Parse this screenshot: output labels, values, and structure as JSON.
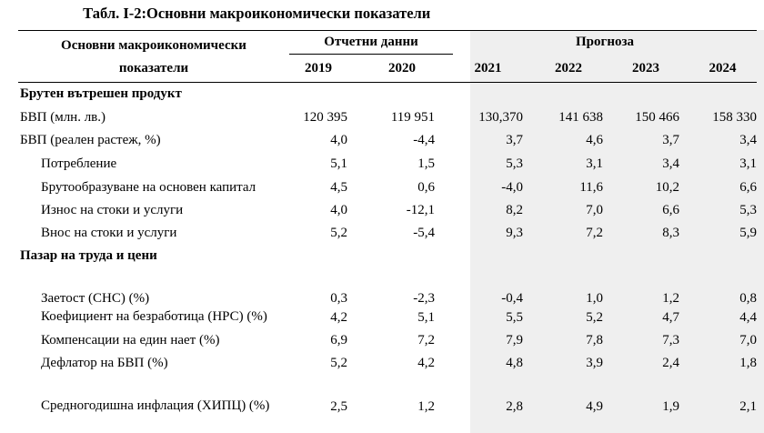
{
  "caption": {
    "number": "Табл. I-2:",
    "title": "Основни макроикономически показатели"
  },
  "header": {
    "indicator_label_line1": "Основни макроикономически",
    "indicator_label_line2": "показатели",
    "reported_label": "Отчетни данни",
    "forecast_label": "Прогноза",
    "years": [
      "2019",
      "2020",
      "2021",
      "2022",
      "2023",
      "2024"
    ]
  },
  "sections": [
    {
      "title": "Брутен вътрешен продукт",
      "rows": [
        {
          "label": "БВП (млн. лв.)",
          "values": [
            "120 395",
            "119 951",
            "130,370",
            "141 638",
            "150 466",
            "158 330"
          ]
        },
        {
          "label": "БВП (реален растеж, %)",
          "values": [
            "4,0",
            "-4,4",
            "3,7",
            "4,6",
            "3,7",
            "3,4"
          ]
        },
        {
          "label": "Потребление",
          "values": [
            "5,1",
            "1,5",
            "5,3",
            "3,1",
            "3,4",
            "3,1"
          ]
        },
        {
          "label": "Брутообразуване на основен капитал",
          "values": [
            "4,5",
            "0,6",
            "-4,0",
            "11,6",
            "10,2",
            "6,6"
          ]
        },
        {
          "label": "Износ на стоки и услуги",
          "values": [
            "4,0",
            "-12,1",
            "8,2",
            "7,0",
            "6,6",
            "5,3"
          ]
        },
        {
          "label": "Внос на стоки и услуги",
          "values": [
            "5,2",
            "-5,4",
            "9,3",
            "7,2",
            "8,3",
            "5,9"
          ]
        }
      ]
    },
    {
      "title": "Пазар на труда и цени",
      "rows": [
        {
          "label": "Заетост (СНС) (%)",
          "values": [
            "0,3",
            "-2,3",
            "-0,4",
            "1,0",
            "1,2",
            "0,8"
          ]
        },
        {
          "label": "Коефициент на безработица (НРС) (%)",
          "values": [
            "4,2",
            "5,1",
            "5,5",
            "5,2",
            "4,7",
            "4,4"
          ]
        },
        {
          "label": "Компенсации на един нает (%)",
          "values": [
            "6,9",
            "7,2",
            "7,9",
            "7,8",
            "7,3",
            "7,0"
          ]
        },
        {
          "label": "Дефлатор на БВП (%)",
          "values": [
            "5,2",
            "4,2",
            "4,8",
            "3,9",
            "2,4",
            "1,8"
          ]
        },
        {
          "label": "Средногодишна инфлация (ХИПЦ) (%)",
          "values": [
            "2,5",
            "1,2",
            "2,8",
            "4,9",
            "1,9",
            "2,1"
          ]
        }
      ]
    }
  ]
}
